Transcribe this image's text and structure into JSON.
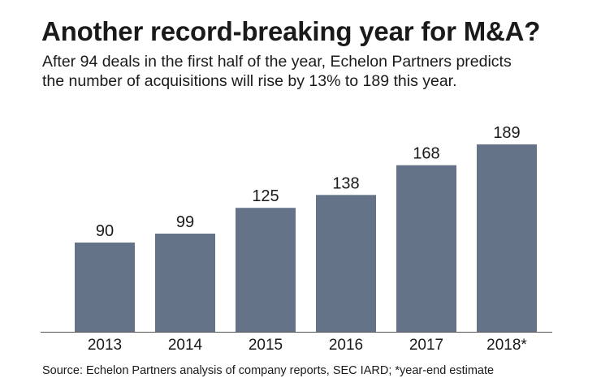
{
  "header": {
    "title": "Another record-breaking year for M&A?",
    "subtitle_line1": "After 94 deals in the first half of the year, Echelon Partners predicts",
    "subtitle_line2": "the number of acquisitions will rise by 13% to 189 this year."
  },
  "footer": {
    "source": "Source: Echelon Partners analysis of company reports, SEC IARD; *year-end estimate"
  },
  "colors": {
    "bar": "#647387",
    "axis": "#555555",
    "text": "#1a1a1a"
  },
  "chart_data": {
    "type": "bar",
    "title": "Another record-breaking year for M&A?",
    "subtitle": "After 94 deals in the first half of the year, Echelon Partners predicts the number of acquisitions will rise by 13% to 189 this year.",
    "categories": [
      "2013",
      "2014",
      "2015",
      "2016",
      "2017",
      "2018*"
    ],
    "values": [
      90,
      99,
      125,
      138,
      168,
      189
    ],
    "data_labels": [
      "90",
      "99",
      "125",
      "138",
      "168",
      "189"
    ],
    "xlabel": "",
    "ylabel": "",
    "ylim": [
      0,
      189
    ],
    "grid": false,
    "legend": "none"
  }
}
